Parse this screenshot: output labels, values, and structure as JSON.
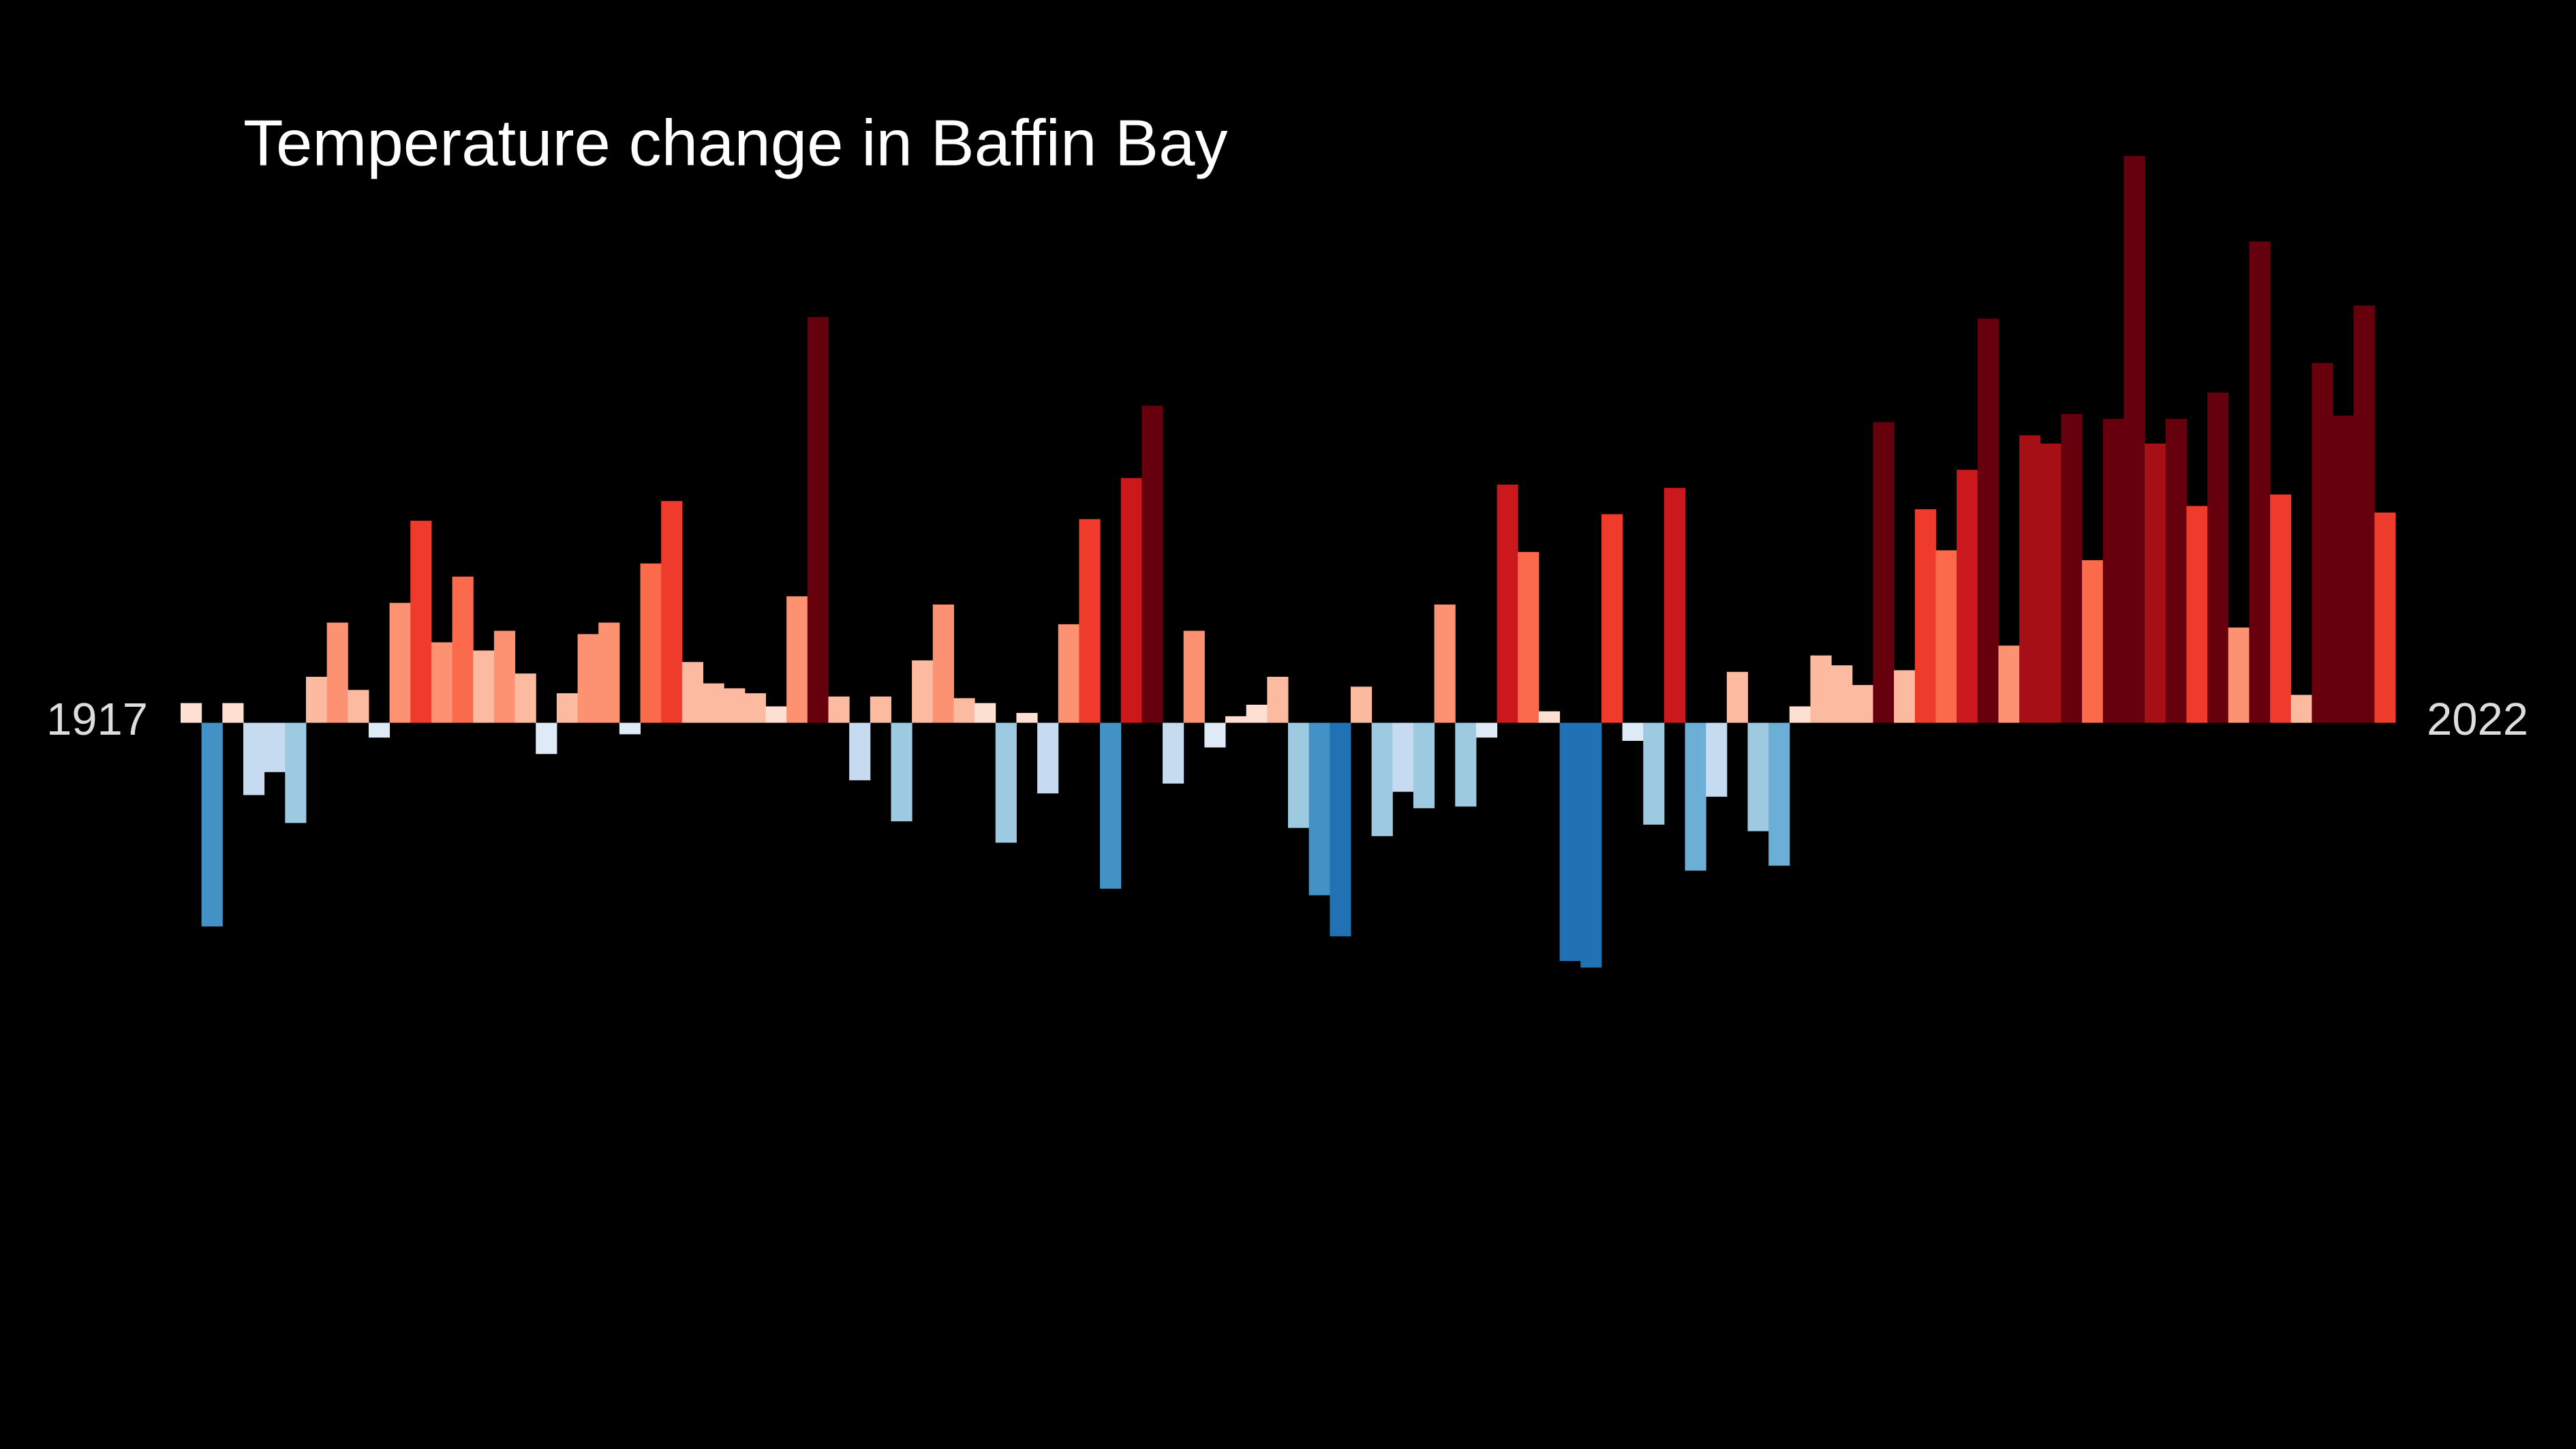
{
  "chart_data": {
    "type": "bar",
    "title": "Temperature change in Baffin Bay",
    "categories": [
      "1917",
      null,
      null,
      null,
      null,
      null,
      null,
      null,
      null,
      null,
      null,
      null,
      null,
      null,
      null,
      null,
      null,
      null,
      null,
      null,
      null,
      null,
      null,
      null,
      null,
      null,
      null,
      null,
      null,
      null,
      null,
      null,
      null,
      null,
      null,
      null,
      null,
      null,
      null,
      null,
      null,
      null,
      null,
      null,
      null,
      null,
      null,
      null,
      null,
      null,
      null,
      null,
      null,
      null,
      null,
      null,
      null,
      null,
      null,
      null,
      null,
      null,
      null,
      null,
      null,
      null,
      null,
      null,
      null,
      null,
      null,
      null,
      null,
      null,
      null,
      null,
      null,
      null,
      null,
      null,
      null,
      null,
      null,
      null,
      null,
      null,
      null,
      null,
      null,
      null,
      null,
      null,
      null,
      null,
      null,
      null,
      null,
      null,
      null,
      null,
      null,
      null,
      null,
      null,
      null,
      "2022"
    ],
    "values": [
      0.12,
      -1.24,
      0.12,
      -0.44,
      -0.3,
      -0.61,
      0.28,
      0.61,
      0.2,
      -0.09,
      0.73,
      1.23,
      0.49,
      0.89,
      0.44,
      0.56,
      0.3,
      -0.19,
      0.18,
      0.54,
      0.61,
      -0.07,
      0.97,
      1.35,
      0.37,
      0.24,
      0.21,
      0.18,
      0.1,
      0.77,
      2.47,
      0.16,
      -0.35,
      0.16,
      -0.6,
      0.38,
      0.72,
      0.15,
      0.12,
      -0.73,
      0.06,
      -0.43,
      0.6,
      1.24,
      -1.01,
      1.49,
      1.93,
      -0.37,
      0.56,
      -0.15,
      0.04,
      0.11,
      0.28,
      -0.64,
      -1.05,
      -1.3,
      0.22,
      -0.69,
      -0.42,
      -0.52,
      0.72,
      -0.51,
      -0.09,
      1.45,
      1.04,
      0.07,
      -1.45,
      -1.49,
      1.27,
      -0.11,
      -0.62,
      1.43,
      -0.9,
      -0.45,
      0.31,
      -0.66,
      -0.87,
      0.1,
      0.41,
      0.35,
      0.23,
      1.83,
      0.32,
      1.3,
      1.05,
      1.54,
      2.46,
      0.47,
      1.75,
      1.7,
      1.88,
      0.99,
      1.85,
      3.45,
      1.7,
      1.85,
      1.32,
      2.01,
      0.58,
      2.93,
      1.39,
      0.17,
      2.19,
      1.87,
      2.54,
      1.28
    ],
    "colors": [
      "#fee0d2",
      "#4292c6",
      "#fee0d2",
      "#c6dbef",
      "#c6dbef",
      "#9ecae1",
      "#fcbba1",
      "#fc9272",
      "#fcbba1",
      "#deebf7",
      "#fc9272",
      "#ef3b2c",
      "#fc9272",
      "#fb6a4a",
      "#fcbba1",
      "#fc9272",
      "#fcbba1",
      "#deebf7",
      "#fcbba1",
      "#fc9272",
      "#fc9272",
      "#deebf7",
      "#fb6a4a",
      "#ef3b2c",
      "#fcbba1",
      "#fcbba1",
      "#fcbba1",
      "#fcbba1",
      "#fee0d2",
      "#fc9272",
      "#67000d",
      "#fcbba1",
      "#c6dbef",
      "#fcbba1",
      "#9ecae1",
      "#fcbba1",
      "#fc9272",
      "#fcbba1",
      "#fee0d2",
      "#9ecae1",
      "#fee0d2",
      "#c6dbef",
      "#fc9272",
      "#ef3b2c",
      "#4292c6",
      "#cb181d",
      "#67000d",
      "#c6dbef",
      "#fc9272",
      "#deebf7",
      "#fee0d2",
      "#fee0d2",
      "#fcbba1",
      "#9ecae1",
      "#4292c6",
      "#2171b5",
      "#fcbba1",
      "#9ecae1",
      "#c6dbef",
      "#9ecae1",
      "#fc9272",
      "#9ecae1",
      "#deebf7",
      "#cb181d",
      "#fb6a4a",
      "#fee0d2",
      "#2171b5",
      "#2171b5",
      "#ef3b2c",
      "#deebf7",
      "#9ecae1",
      "#cb181d",
      "#6baed6",
      "#c6dbef",
      "#fcbba1",
      "#9ecae1",
      "#6baed6",
      "#fee0d2",
      "#fcbba1",
      "#fcbba1",
      "#fcbba1",
      "#67000d",
      "#fcbba1",
      "#ef3b2c",
      "#fb6a4a",
      "#cb181d",
      "#67000d",
      "#fc9272",
      "#a50f15",
      "#a50f15",
      "#67000d",
      "#fb6a4a",
      "#67000d",
      "#67000d",
      "#a50f15",
      "#67000d",
      "#ef3b2c",
      "#67000d",
      "#fc9272",
      "#67000d",
      "#ef3b2c",
      "#fcbba1",
      "#67000d",
      "#67000d",
      "#67000d",
      "#ef3b2c"
    ],
    "ylim": [
      -4.4,
      4.4
    ]
  }
}
